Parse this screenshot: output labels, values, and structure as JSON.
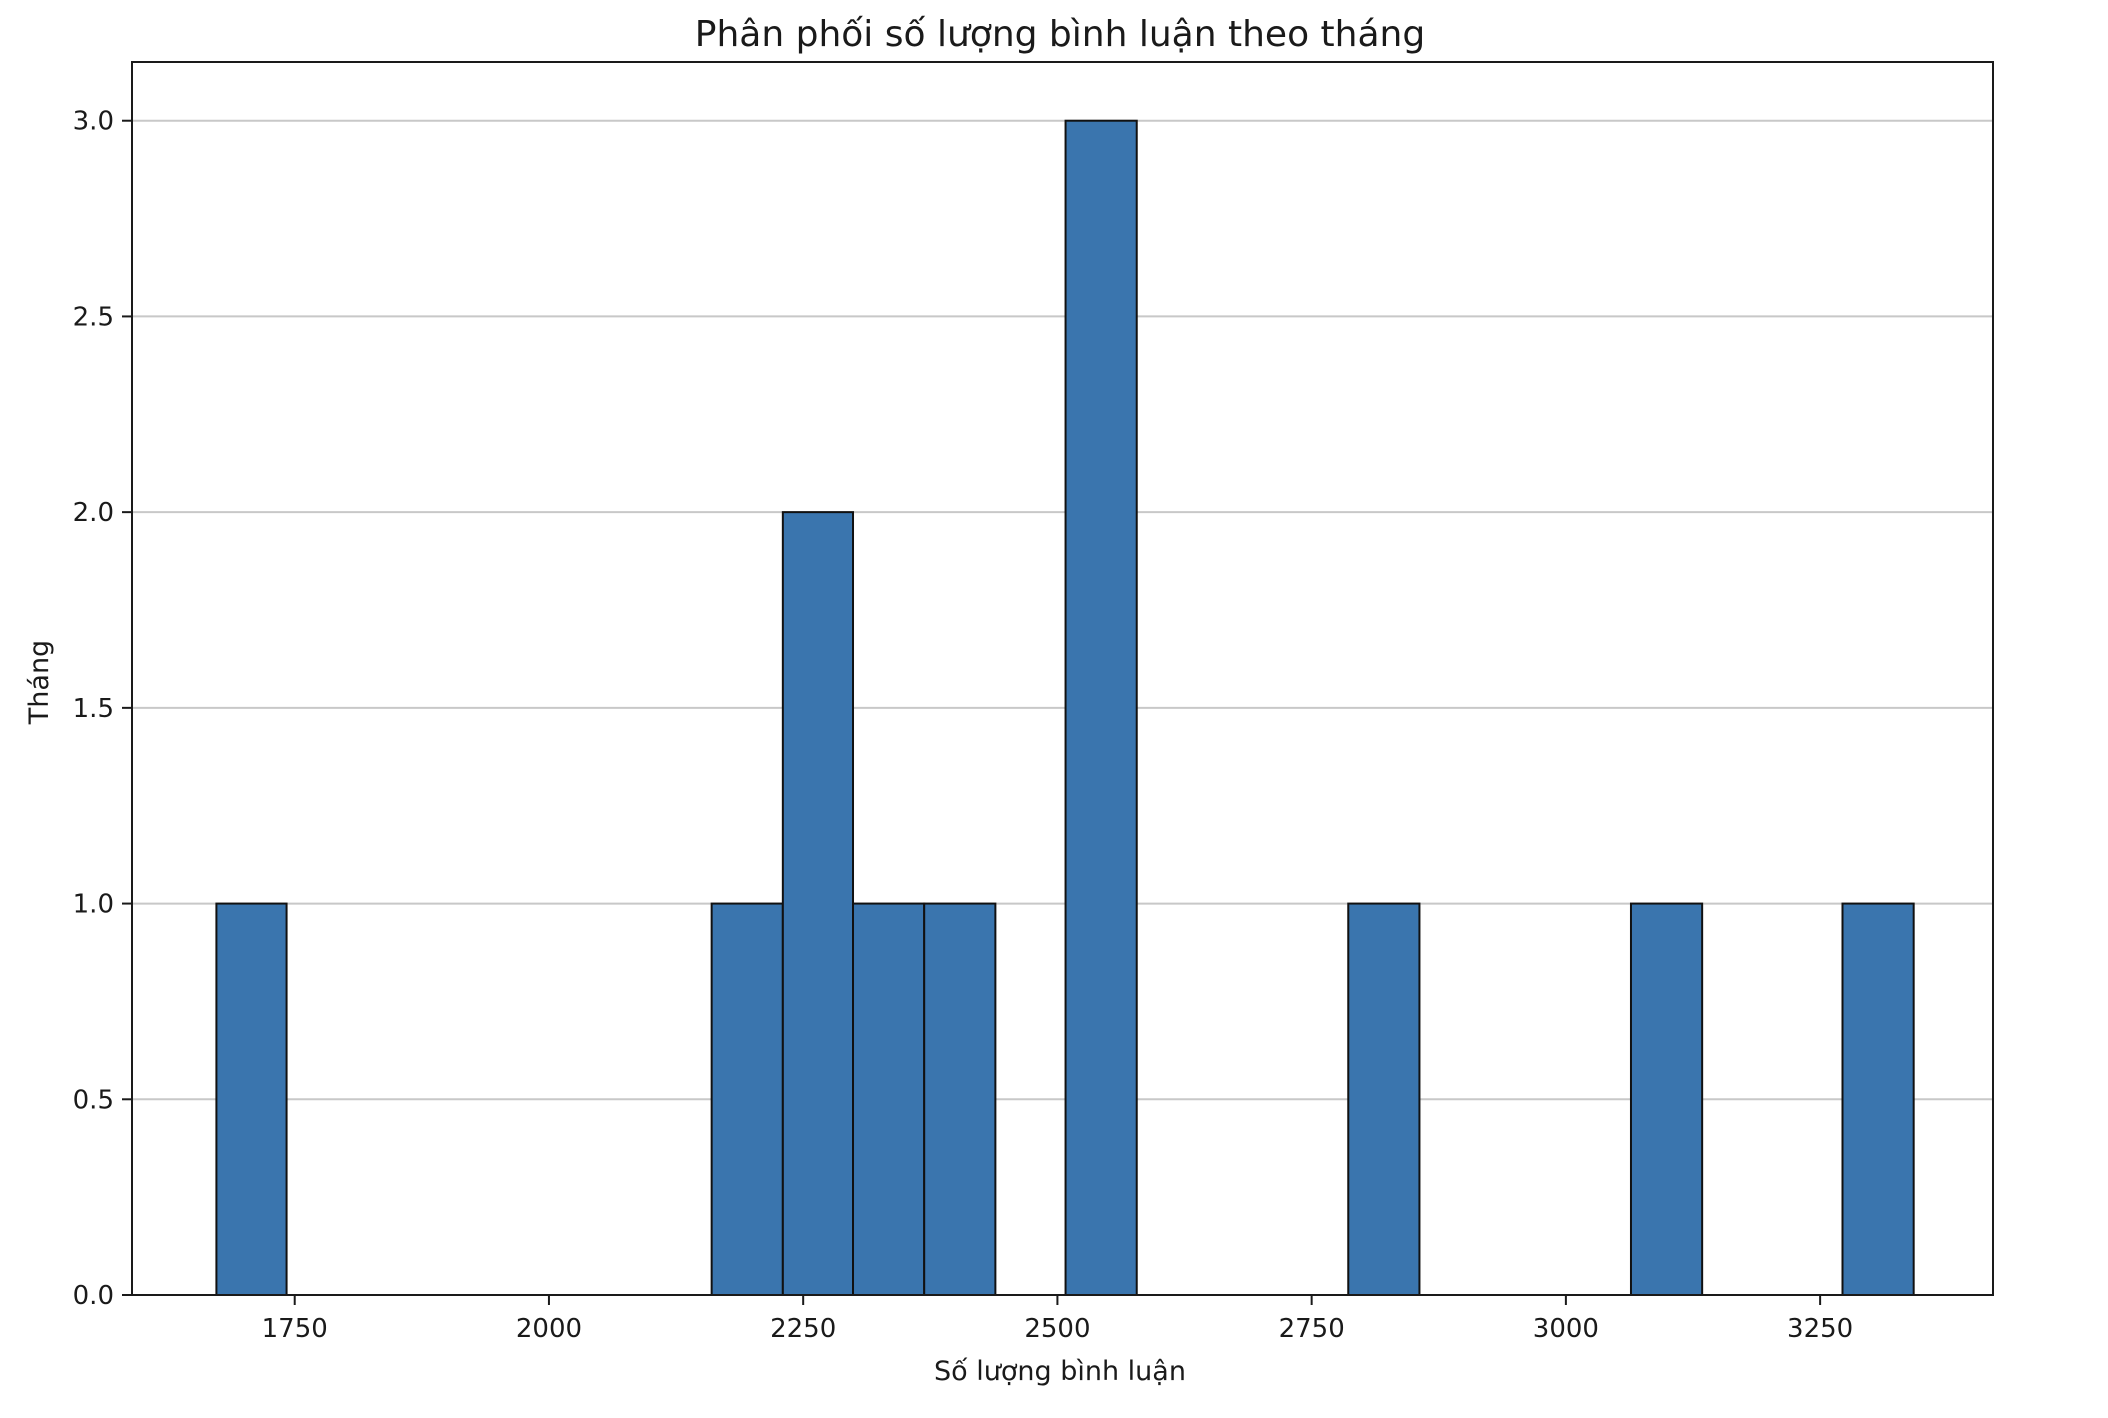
{
  "chart_data": {
    "type": "bar",
    "title": "Phân phối số lượng bình luận theo tháng",
    "xlabel": "Số lượng bình luận",
    "ylabel": "Tháng",
    "xlim": [
      1590,
      3420
    ],
    "ylim": [
      0,
      3.15
    ],
    "xticks": [
      1750,
      2000,
      2250,
      2500,
      2750,
      3000,
      3250
    ],
    "yticks": [
      0.0,
      0.5,
      1.0,
      1.5,
      2.0,
      2.5,
      3.0
    ],
    "ytick_labels": [
      "0.0",
      "0.5",
      "1.0",
      "1.5",
      "2.0",
      "2.5",
      "3.0"
    ],
    "grid": "y",
    "bar_color": "#3a75ae",
    "bins": [
      {
        "x0": 1673,
        "x1": 1742,
        "count": 1
      },
      {
        "x0": 2160,
        "x1": 2230,
        "count": 1
      },
      {
        "x0": 2230,
        "x1": 2299,
        "count": 2
      },
      {
        "x0": 2299,
        "x1": 2369,
        "count": 1
      },
      {
        "x0": 2369,
        "x1": 2439,
        "count": 1
      },
      {
        "x0": 2508,
        "x1": 2578,
        "count": 3
      },
      {
        "x0": 2786,
        "x1": 2856,
        "count": 1
      },
      {
        "x0": 3064,
        "x1": 3134,
        "count": 1
      },
      {
        "x0": 3272,
        "x1": 3342,
        "count": 1
      }
    ]
  }
}
